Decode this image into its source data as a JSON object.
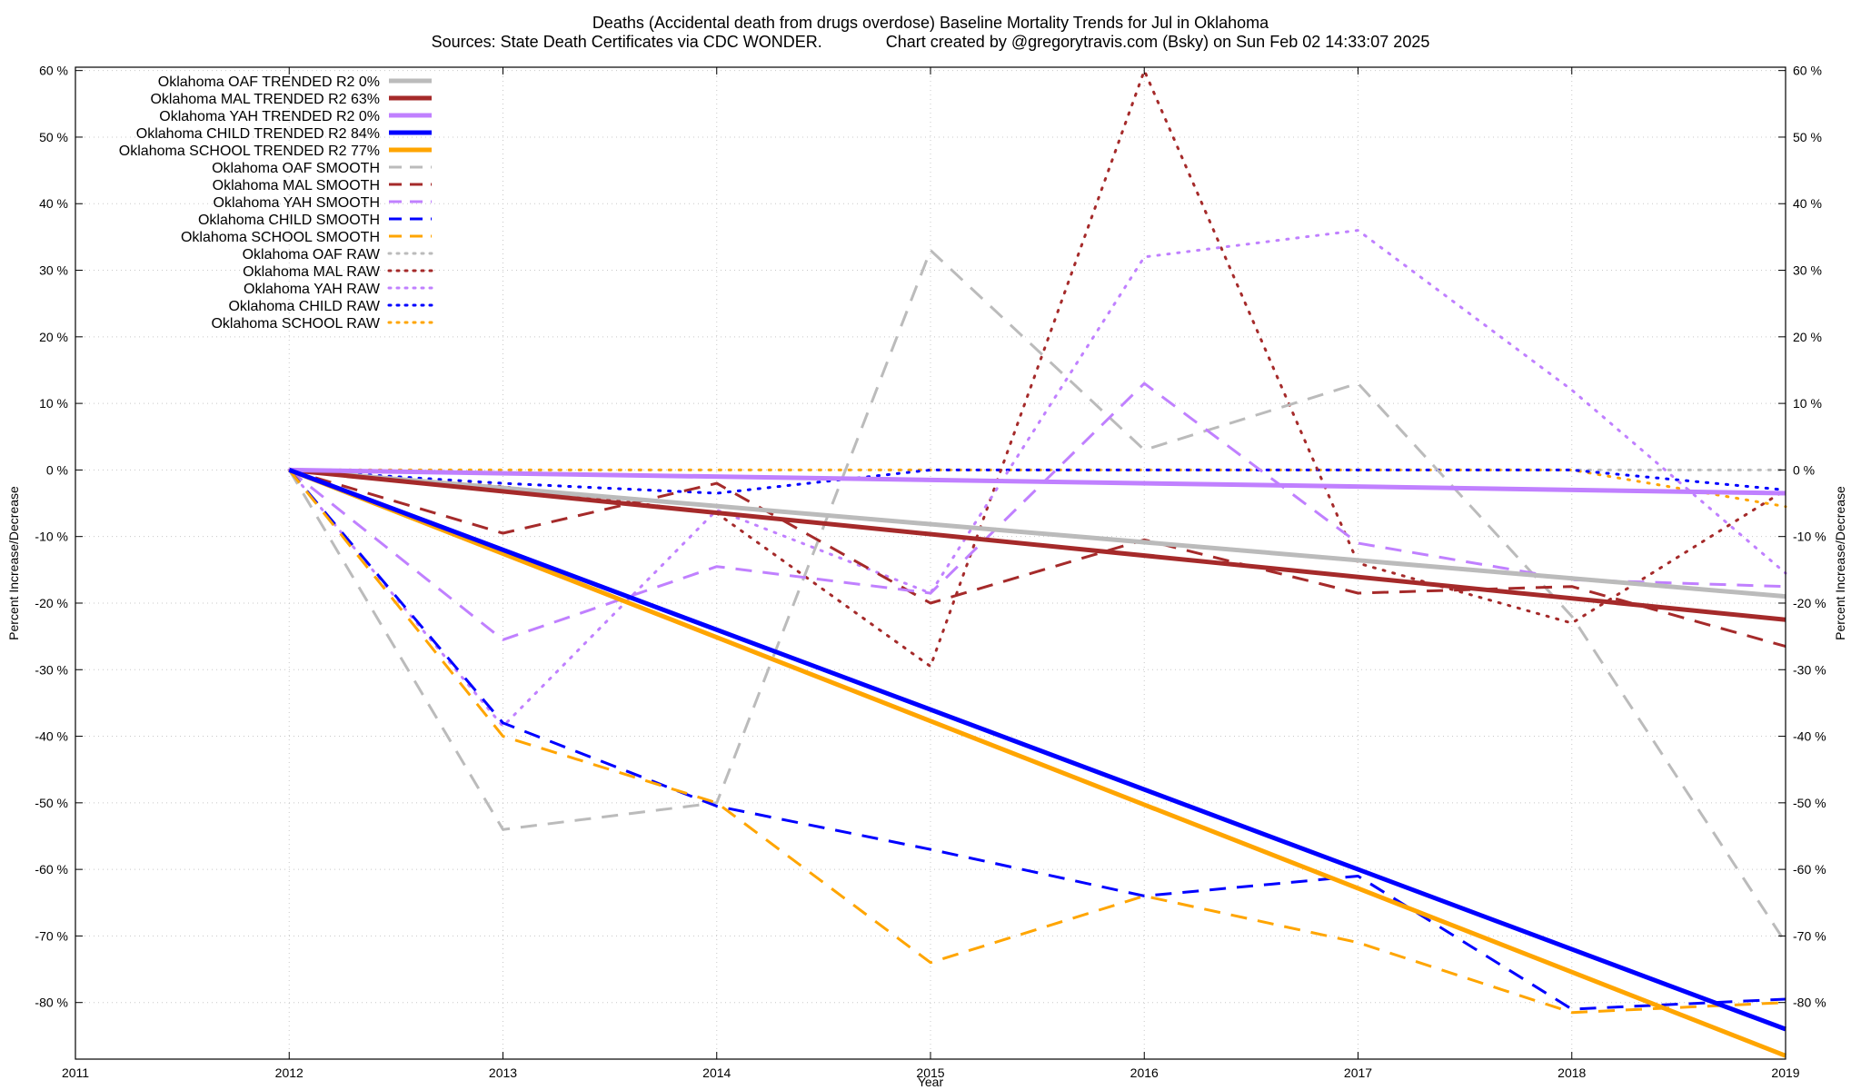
{
  "chart_data": {
    "type": "line",
    "title": "Deaths (Accidental death from drugs overdose)  Baseline Mortality Trends for Jul in Oklahoma",
    "subtitle": "Sources: State Death Certificates via CDC WONDER.              Chart created by @gregorytravis.com (Bsky) on Sun Feb 02 14:33:07 2025",
    "xlabel": "Year",
    "ylabel": "Percent Increase/Decrease",
    "xlim": [
      2011,
      2019
    ],
    "ylim": [
      -88.5,
      60.5
    ],
    "x_ticks": [
      "2011",
      "2012",
      "2013",
      "2014",
      "2015",
      "2016",
      "2017",
      "2018",
      "2019"
    ],
    "y_ticks": [
      {
        "value": 60,
        "label": "60 %"
      },
      {
        "value": 50,
        "label": "50 %"
      },
      {
        "value": 40,
        "label": "40 %"
      },
      {
        "value": 30,
        "label": "30 %"
      },
      {
        "value": 20,
        "label": "20 %"
      },
      {
        "value": 10,
        "label": "10 %"
      },
      {
        "value": 0,
        "label": "0 %"
      },
      {
        "value": -10,
        "label": "-10 %"
      },
      {
        "value": -20,
        "label": "-20 %"
      },
      {
        "value": -30,
        "label": "-30 %"
      },
      {
        "value": -40,
        "label": "-40 %"
      },
      {
        "value": -50,
        "label": "-50 %"
      },
      {
        "value": -60,
        "label": "-60 %"
      },
      {
        "value": -70,
        "label": "-70 %"
      },
      {
        "value": -80,
        "label": "-80 %"
      }
    ],
    "grid": true,
    "legend_position": "top-left",
    "series": [
      {
        "name": "Oklahoma OAF TRENDED R2  0%",
        "color": "#bbbbbb",
        "style": "solid",
        "width": 5,
        "x": [
          2012,
          2019
        ],
        "y": [
          0,
          -19
        ]
      },
      {
        "name": "Oklahoma MAL TRENDED R2  63%",
        "color": "#a52a2a",
        "style": "solid",
        "width": 5,
        "x": [
          2012,
          2019
        ],
        "y": [
          0,
          -22.5
        ]
      },
      {
        "name": "Oklahoma YAH TRENDED R2  0%",
        "color": "#c080ff",
        "style": "solid",
        "width": 5,
        "x": [
          2012,
          2019
        ],
        "y": [
          0,
          -3.5
        ]
      },
      {
        "name": "Oklahoma CHILD TRENDED R2  84%",
        "color": "#0000ff",
        "style": "solid",
        "width": 5,
        "x": [
          2012,
          2019
        ],
        "y": [
          0,
          -84
        ]
      },
      {
        "name": "Oklahoma SCHOOL TRENDED R2  77%",
        "color": "#ffa500",
        "style": "solid",
        "width": 5,
        "x": [
          2012,
          2019
        ],
        "y": [
          0,
          -88
        ]
      },
      {
        "name": "Oklahoma OAF SMOOTH",
        "color": "#bbbbbb",
        "style": "dashed",
        "width": 3,
        "x": [
          2012,
          2013,
          2014,
          2015,
          2016,
          2017,
          2018,
          2019
        ],
        "y": [
          0,
          -54,
          -50,
          33,
          3,
          13,
          -22,
          -71
        ]
      },
      {
        "name": "Oklahoma MAL SMOOTH",
        "color": "#a52a2a",
        "style": "dashed",
        "width": 3,
        "x": [
          2012,
          2013,
          2014,
          2015,
          2016,
          2017,
          2018,
          2019
        ],
        "y": [
          0,
          -9.5,
          -2,
          -20,
          -10.5,
          -18.5,
          -17.5,
          -26.5
        ]
      },
      {
        "name": "Oklahoma YAH SMOOTH",
        "color": "#c080ff",
        "style": "dashed",
        "width": 3,
        "x": [
          2012,
          2013,
          2014,
          2015,
          2016,
          2017,
          2018,
          2019
        ],
        "y": [
          0,
          -25.5,
          -14.5,
          -18.5,
          13,
          -11,
          -16.5,
          -17.5
        ]
      },
      {
        "name": "Oklahoma CHILD SMOOTH",
        "color": "#0000ff",
        "style": "dashed",
        "width": 3,
        "x": [
          2012,
          2013,
          2014,
          2015,
          2016,
          2017,
          2018,
          2019
        ],
        "y": [
          0,
          -38,
          -50.5,
          -57,
          -64,
          -61,
          -81,
          -79.5
        ]
      },
      {
        "name": "Oklahoma SCHOOL SMOOTH",
        "color": "#ffa500",
        "style": "dashed",
        "width": 3,
        "x": [
          2012,
          2013,
          2014,
          2015,
          2016,
          2017,
          2018,
          2019
        ],
        "y": [
          0,
          -40,
          -50,
          -74,
          -64,
          -71,
          -81.5,
          -80
        ]
      },
      {
        "name": "Oklahoma OAF RAW",
        "color": "#bbbbbb",
        "style": "dotted",
        "width": 3,
        "x": [
          2012,
          2013,
          2014,
          2015,
          2016,
          2017,
          2018,
          2019
        ],
        "y": [
          0,
          0,
          0,
          0,
          0,
          0,
          0,
          0
        ]
      },
      {
        "name": "Oklahoma MAL RAW",
        "color": "#a52a2a",
        "style": "dotted",
        "width": 3,
        "x": [
          2012,
          2013,
          2014,
          2015,
          2016,
          2017,
          2018,
          2019
        ],
        "y": [
          0,
          -2.5,
          -6.5,
          -29.5,
          60,
          -14,
          -23,
          -3
        ]
      },
      {
        "name": "Oklahoma YAH RAW",
        "color": "#c080ff",
        "style": "dotted",
        "width": 3,
        "x": [
          2012,
          2013,
          2014,
          2015,
          2016,
          2017,
          2018,
          2019
        ],
        "y": [
          0,
          -38.5,
          -6,
          -18.5,
          32,
          36,
          12,
          -15.5
        ]
      },
      {
        "name": "Oklahoma CHILD RAW",
        "color": "#0000ff",
        "style": "dotted",
        "width": 3,
        "x": [
          2012,
          2013,
          2014,
          2015,
          2016,
          2017,
          2018,
          2019
        ],
        "y": [
          0,
          -2,
          -3.5,
          0,
          0,
          0,
          0,
          -3
        ]
      },
      {
        "name": "Oklahoma SCHOOL RAW",
        "color": "#ffa500",
        "style": "dotted",
        "width": 3,
        "x": [
          2012,
          2013,
          2014,
          2015,
          2016,
          2017,
          2018,
          2019
        ],
        "y": [
          0,
          0,
          0,
          0,
          0,
          0,
          0,
          -5.5
        ]
      }
    ]
  }
}
